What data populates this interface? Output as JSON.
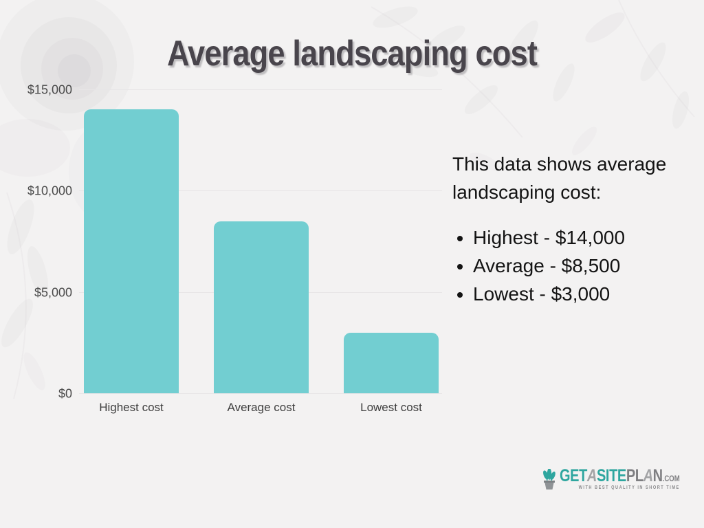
{
  "title": "Average landscaping cost",
  "chart_data": {
    "type": "bar",
    "categories": [
      "Highest cost",
      "Average cost",
      "Lowest cost"
    ],
    "values": [
      14000,
      8500,
      3000
    ],
    "title": "Average landscaping cost",
    "xlabel": "",
    "ylabel": "",
    "ylim": [
      0,
      15000
    ],
    "yticks": [
      0,
      5000,
      10000,
      15000
    ],
    "ytick_labels": [
      "$0",
      "$5,000",
      "$10,000",
      "$15,000"
    ],
    "bar_color": "#72ced1",
    "grid": true,
    "legend": false
  },
  "description": {
    "intro": "This data shows average landscaping cost:",
    "bullets": [
      "Highest - $14,000",
      "Average - $8,500",
      "Lowest - $3,000"
    ]
  },
  "logo": {
    "part_get": "GET",
    "part_a1": "A",
    "part_site": "SITE",
    "part_pl": "PL",
    "part_a2": "A",
    "part_n": "N",
    "part_com": ".COM",
    "tagline": "WITH BEST QUALITY IN SHORT TIME"
  },
  "colors": {
    "background": "#f3f2f2",
    "bar": "#72ced1",
    "title_text": "#49454c",
    "axis_label": "#4b4b4b",
    "body_text": "#131313",
    "gridline": "#e7e5e7",
    "logo_teal": "#2ea69f",
    "logo_gray": "#7e7e81"
  }
}
